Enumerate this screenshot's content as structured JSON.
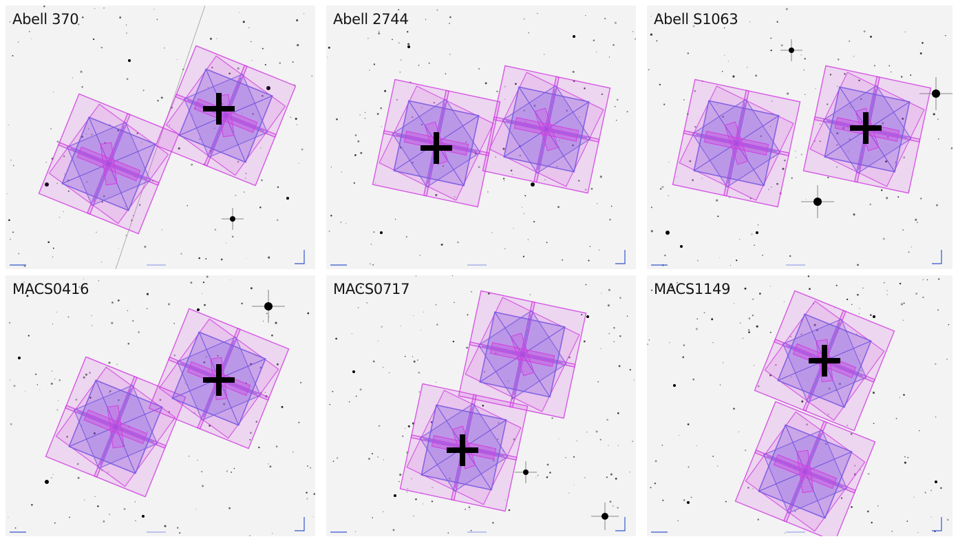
{
  "panels": [
    {
      "label": "Abell 370"
    },
    {
      "label": "Abell 2744"
    },
    {
      "label": "Abell S1063"
    },
    {
      "label": "MACS0416"
    },
    {
      "label": "MACS0717"
    },
    {
      "label": "MACS1149"
    }
  ],
  "colors": {
    "sky_background": "#f3f3f3",
    "footprint_magenta": "#d040e0",
    "footprint_blue": "#7a5ae0",
    "cluster_marker": "#000000"
  }
}
